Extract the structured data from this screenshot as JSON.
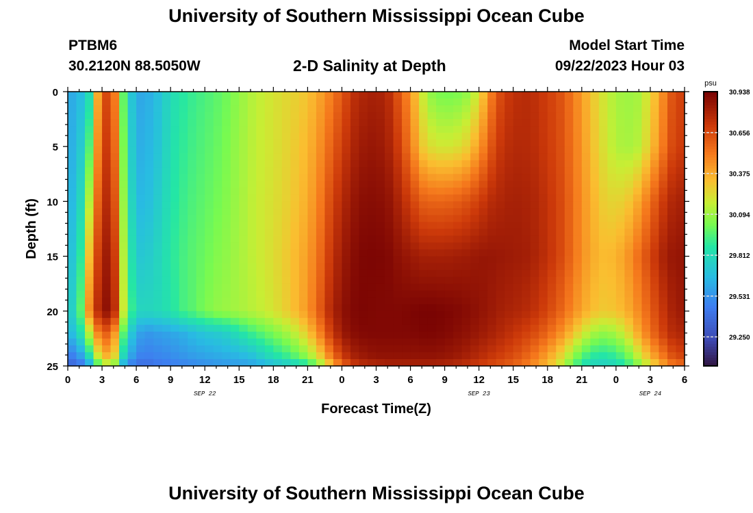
{
  "header": {
    "title": "University of Southern Mississippi Ocean Cube",
    "footer_title": "University of Southern Mississippi Ocean Cube",
    "station_id": "PTBM6",
    "coordinates": "30.2120N  88.5050W",
    "subtitle": "2-D Salinity at Depth",
    "model_start_label": "Model Start Time",
    "model_start_value": "09/22/2023 Hour 03"
  },
  "chart_data": {
    "type": "heatmap",
    "title": "2-D Salinity at Depth",
    "xlabel": "Forecast Time(Z)",
    "ylabel": "Depth (ft)",
    "x_range_hours": [
      0,
      54
    ],
    "y_range_ft": [
      0,
      25
    ],
    "x_ticks": [
      {
        "h": 0,
        "label": "0"
      },
      {
        "h": 3,
        "label": "3"
      },
      {
        "h": 6,
        "label": "6"
      },
      {
        "h": 9,
        "label": "9"
      },
      {
        "h": 12,
        "label": "12"
      },
      {
        "h": 15,
        "label": "15"
      },
      {
        "h": 18,
        "label": "18"
      },
      {
        "h": 21,
        "label": "21"
      },
      {
        "h": 24,
        "label": "0"
      },
      {
        "h": 27,
        "label": "3"
      },
      {
        "h": 30,
        "label": "6"
      },
      {
        "h": 33,
        "label": "9"
      },
      {
        "h": 36,
        "label": "12"
      },
      {
        "h": 39,
        "label": "15"
      },
      {
        "h": 42,
        "label": "18"
      },
      {
        "h": 45,
        "label": "21"
      },
      {
        "h": 48,
        "label": "0"
      },
      {
        "h": 51,
        "label": "3"
      },
      {
        "h": 54,
        "label": "6"
      }
    ],
    "date_labels": [
      {
        "h": 12,
        "label": "SEP 22"
      },
      {
        "h": 36,
        "label": "SEP 23"
      },
      {
        "h": 51,
        "label": "SEP 24"
      }
    ],
    "y_ticks": [
      0,
      5,
      10,
      15,
      20,
      25
    ],
    "colorbar": {
      "unit": "psu",
      "vmin": 29.05,
      "vmax": 30.938,
      "tick_values": [
        30.938,
        30.656,
        30.375,
        30.094,
        29.812,
        29.531,
        29.25
      ],
      "tick_labels": [
        "30.938",
        "30.656",
        "30.375",
        "30.094",
        "29.812",
        "29.531",
        "29.250"
      ]
    },
    "grid": {
      "hours": [
        0,
        1,
        2,
        3,
        4,
        5,
        6,
        7,
        8,
        9,
        10,
        11,
        12,
        13,
        14,
        15,
        16,
        17,
        18,
        19,
        20,
        21,
        22,
        23,
        24,
        25,
        26,
        27,
        28,
        29,
        30,
        31,
        32,
        33,
        34,
        35,
        36,
        37,
        38,
        39,
        40,
        41,
        42,
        43,
        44,
        45,
        46,
        47,
        48,
        49,
        50,
        51,
        52,
        53,
        54
      ],
      "depths_ft": [
        0,
        5,
        10,
        15,
        20,
        22,
        24,
        25
      ],
      "salinity_psu": [
        [
          29.6,
          29.65,
          29.85,
          30.7,
          30.6,
          29.9,
          29.6,
          29.62,
          29.7,
          29.82,
          29.88,
          29.92,
          29.95,
          29.98,
          30.02,
          30.08,
          30.14,
          30.18,
          30.22,
          30.25,
          30.28,
          30.32,
          30.4,
          30.5,
          30.62,
          30.75,
          30.8,
          30.82,
          30.78,
          30.62,
          30.45,
          30.2,
          30.05,
          30.02,
          30.03,
          30.08,
          30.22,
          30.5,
          30.68,
          30.75,
          30.77,
          30.75,
          30.7,
          30.65,
          30.55,
          30.42,
          30.3,
          30.2,
          30.12,
          30.1,
          30.12,
          30.25,
          30.45,
          30.65,
          30.7
        ],
        [
          29.6,
          29.7,
          30.0,
          30.75,
          30.65,
          29.95,
          29.62,
          29.65,
          29.72,
          29.84,
          29.9,
          29.94,
          29.97,
          30.0,
          30.04,
          30.1,
          30.15,
          30.19,
          30.22,
          30.26,
          30.3,
          30.35,
          30.45,
          30.58,
          30.7,
          30.8,
          30.85,
          30.86,
          30.82,
          30.7,
          30.52,
          30.3,
          30.22,
          30.2,
          30.22,
          30.28,
          30.42,
          30.62,
          30.74,
          30.78,
          30.78,
          30.76,
          30.71,
          30.66,
          30.56,
          30.44,
          30.32,
          30.22,
          30.14,
          30.12,
          30.15,
          30.3,
          30.5,
          30.68,
          30.72
        ],
        [
          29.62,
          29.75,
          30.2,
          30.8,
          30.72,
          30.0,
          29.66,
          29.68,
          29.76,
          29.86,
          29.92,
          29.96,
          29.99,
          30.02,
          30.06,
          30.11,
          30.16,
          30.2,
          30.23,
          30.27,
          30.32,
          30.38,
          30.5,
          30.66,
          30.78,
          30.86,
          30.9,
          30.9,
          30.88,
          30.8,
          30.7,
          30.6,
          30.58,
          30.58,
          30.6,
          30.64,
          30.7,
          30.77,
          30.8,
          30.82,
          30.81,
          30.79,
          30.74,
          30.68,
          30.58,
          30.46,
          30.36,
          30.28,
          30.26,
          30.3,
          30.4,
          30.55,
          30.7,
          30.8,
          30.82
        ],
        [
          29.65,
          29.82,
          30.4,
          30.86,
          30.8,
          30.05,
          29.72,
          29.74,
          29.8,
          29.88,
          29.94,
          29.98,
          30.01,
          30.05,
          30.08,
          30.12,
          30.16,
          30.2,
          30.24,
          30.29,
          30.35,
          30.42,
          30.55,
          30.72,
          30.84,
          30.9,
          30.93,
          30.93,
          30.92,
          30.88,
          30.85,
          30.82,
          30.82,
          30.82,
          30.83,
          30.84,
          30.86,
          30.86,
          30.85,
          30.84,
          30.83,
          30.8,
          30.75,
          30.68,
          30.58,
          30.46,
          30.38,
          30.34,
          30.36,
          30.44,
          30.56,
          30.68,
          30.8,
          30.86,
          30.87
        ],
        [
          29.7,
          29.9,
          30.55,
          30.9,
          30.85,
          30.1,
          29.8,
          29.8,
          29.82,
          29.86,
          29.94,
          29.98,
          30.04,
          30.08,
          30.1,
          30.12,
          30.15,
          30.18,
          30.22,
          30.28,
          30.35,
          30.44,
          30.6,
          30.78,
          30.88,
          30.92,
          30.93,
          30.92,
          30.92,
          30.92,
          30.93,
          30.94,
          30.94,
          30.93,
          30.92,
          30.9,
          30.88,
          30.85,
          30.82,
          30.8,
          30.78,
          30.74,
          30.68,
          30.6,
          30.5,
          30.4,
          30.33,
          30.3,
          30.32,
          30.38,
          30.48,
          30.6,
          30.72,
          30.82,
          30.85
        ],
        [
          29.62,
          29.8,
          30.2,
          30.66,
          30.5,
          29.9,
          29.6,
          29.55,
          29.58,
          29.6,
          29.63,
          29.68,
          29.72,
          29.74,
          29.78,
          29.85,
          29.92,
          29.98,
          30.04,
          30.1,
          30.18,
          30.3,
          30.48,
          30.7,
          30.85,
          30.9,
          30.92,
          30.92,
          30.92,
          30.92,
          30.92,
          30.93,
          30.93,
          30.92,
          30.9,
          30.88,
          30.85,
          30.82,
          30.78,
          30.74,
          30.7,
          30.65,
          30.58,
          30.48,
          30.36,
          30.22,
          30.12,
          30.08,
          30.12,
          30.24,
          30.4,
          30.55,
          30.68,
          30.78,
          30.8
        ],
        [
          29.45,
          29.55,
          29.9,
          30.4,
          30.35,
          29.75,
          29.5,
          29.48,
          29.5,
          29.52,
          29.55,
          29.58,
          29.6,
          29.62,
          29.64,
          29.66,
          29.7,
          29.78,
          29.86,
          29.92,
          30.0,
          30.1,
          30.28,
          30.52,
          30.72,
          30.82,
          30.86,
          30.88,
          30.88,
          30.88,
          30.88,
          30.88,
          30.88,
          30.87,
          30.85,
          30.82,
          30.78,
          30.74,
          30.7,
          30.66,
          30.6,
          30.52,
          30.42,
          30.3,
          30.14,
          29.98,
          29.9,
          29.88,
          29.92,
          30.02,
          30.2,
          30.38,
          30.52,
          30.66,
          30.7
        ],
        [
          29.35,
          29.4,
          29.6,
          30.1,
          30.1,
          29.55,
          29.4,
          29.4,
          29.44,
          29.46,
          29.48,
          29.5,
          29.52,
          29.54,
          29.55,
          29.56,
          29.58,
          29.62,
          29.68,
          29.72,
          29.78,
          29.86,
          30.05,
          30.3,
          30.55,
          30.7,
          30.76,
          30.78,
          30.8,
          30.8,
          30.8,
          30.8,
          30.8,
          30.79,
          30.77,
          30.74,
          30.7,
          30.66,
          30.62,
          30.58,
          30.52,
          30.44,
          30.34,
          30.2,
          30.02,
          29.85,
          29.78,
          29.76,
          29.8,
          29.9,
          30.05,
          30.22,
          30.38,
          30.52,
          30.56
        ]
      ]
    }
  }
}
